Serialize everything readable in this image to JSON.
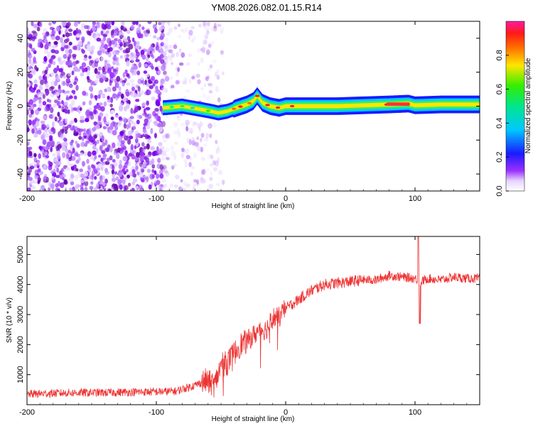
{
  "title": "YM08.2026.082.01.15.R14",
  "chart_data": [
    {
      "type": "heatmap",
      "xlabel": "Height of straight line (km)",
      "ylabel": "Frequency (Hz)",
      "xlim": [
        -200,
        150
      ],
      "ylim": [
        -50,
        50
      ],
      "xticks": [
        -200,
        -100,
        0,
        100
      ],
      "yticks": [
        -40,
        -20,
        0,
        20,
        40
      ],
      "colorbar": {
        "label": "Normalized spectral amplitude",
        "range": [
          0,
          1
        ],
        "ticks": [
          "0.0",
          "0.2",
          "0.4",
          "0.6",
          "0.8"
        ]
      },
      "ridge": {
        "x": [
          -95,
          -80,
          -65,
          -58,
          -52,
          -45,
          -38,
          -30,
          -25,
          -22,
          -18,
          -12,
          -5,
          0,
          20,
          40,
          60,
          80,
          95,
          100,
          120,
          150
        ],
        "y": [
          -1,
          0,
          -2,
          -3,
          -4,
          -3,
          -1,
          1,
          3,
          6,
          2,
          0,
          -1,
          0,
          0,
          0,
          0.5,
          1,
          1.5,
          0.5,
          1,
          1
        ]
      }
    },
    {
      "type": "line",
      "xlabel": "Height of straight line (km)",
      "ylabel": "SNR (10 * v/v)",
      "xlim": [
        -200,
        150
      ],
      "ylim": [
        0,
        5600
      ],
      "xticks": [
        -200,
        -100,
        0,
        100
      ],
      "yticks": [
        1000,
        2000,
        3000,
        4000,
        5000
      ],
      "series": [
        {
          "name": "SNR",
          "color": "#ee3333",
          "x": [
            -200,
            -180,
            -160,
            -140,
            -120,
            -100,
            -85,
            -70,
            -62,
            -55,
            -50,
            -45,
            -40,
            -35,
            -30,
            -25,
            -20,
            -15,
            -10,
            -5,
            0,
            10,
            20,
            30,
            40,
            50,
            60,
            70,
            80,
            90,
            100,
            105,
            110,
            120,
            130,
            140,
            150
          ],
          "values": [
            350,
            380,
            400,
            400,
            420,
            430,
            450,
            650,
            800,
            650,
            1300,
            1400,
            1700,
            2000,
            2100,
            2300,
            2500,
            2500,
            2900,
            2900,
            3200,
            3500,
            3800,
            4000,
            4050,
            4100,
            4150,
            4150,
            4300,
            4250,
            4200,
            4100,
            4200,
            4150,
            4250,
            4200,
            4200
          ]
        }
      ]
    }
  ]
}
